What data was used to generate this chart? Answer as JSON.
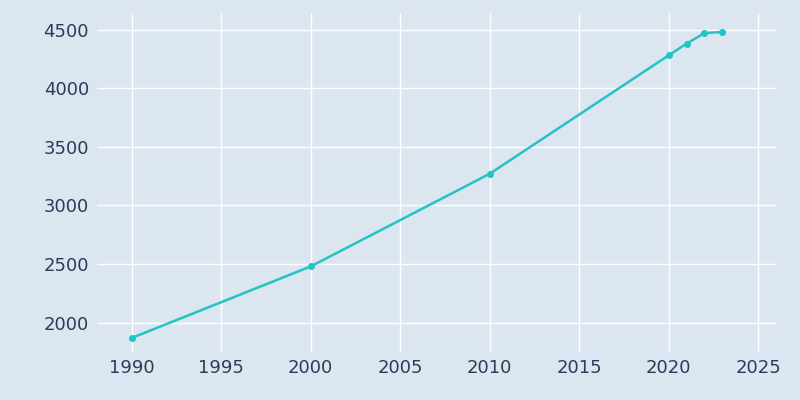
{
  "years": [
    1990,
    2000,
    2010,
    2020,
    2021,
    2022,
    2023
  ],
  "population": [
    1870,
    2480,
    3270,
    4280,
    4380,
    4470,
    4480
  ],
  "line_color": "#22c4c4",
  "marker": "o",
  "marker_size": 4,
  "bg_color": "#dce6f0",
  "axes_bg_color": "#dce6f0",
  "figure_bg_color": "#dce6f0",
  "tick_label_color": "#2d3a5a",
  "grid_color": "#ffffff",
  "xlim": [
    1988,
    2026
  ],
  "ylim": [
    1750,
    4650
  ],
  "xticks": [
    1990,
    1995,
    2000,
    2005,
    2010,
    2015,
    2020,
    2025
  ],
  "yticks": [
    2000,
    2500,
    3000,
    3500,
    4000,
    4500
  ],
  "tick_fontsize": 13,
  "spine_color": "#dce6f0",
  "linewidth": 1.8
}
